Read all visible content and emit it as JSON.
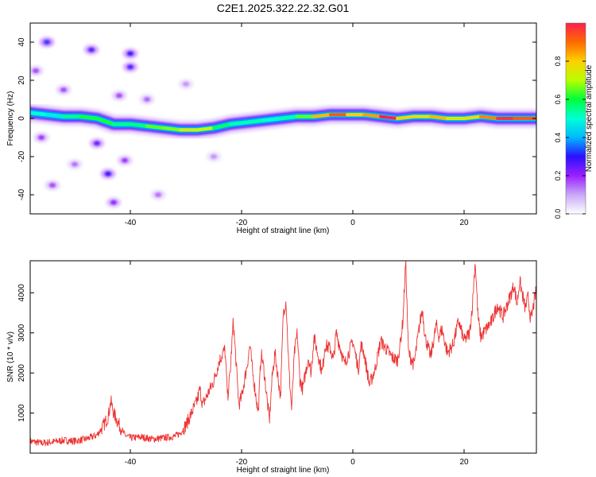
{
  "figure": {
    "title": "C2E1.2025.322.22.32.G01"
  },
  "chart_data": [
    {
      "type": "heatmap",
      "title": "C2E1.2025.322.22.32.G01",
      "xlabel": "Height of straight line (km)",
      "ylabel": "Frequency (Hz)",
      "xlim": [
        -58,
        33
      ],
      "ylim": [
        -50,
        50
      ],
      "xticks": [
        -40,
        -20,
        0,
        20
      ],
      "yticks": [
        -40,
        -20,
        0,
        20,
        40
      ],
      "colorbar": {
        "label": "Normalized spectral amplitude",
        "range": [
          0.0,
          1.0
        ],
        "ticks": [
          0.0,
          0.2,
          0.4,
          0.6,
          0.8
        ],
        "tick_labels": [
          "0.0",
          "0.2",
          "0.4",
          "0.6",
          "0.8"
        ],
        "colormap": [
          "#ffffff",
          "#c9a8f7",
          "#9a20ff",
          "#2a10ff",
          "#00b8ff",
          "#00ffd6",
          "#00ff3c",
          "#b8ff00",
          "#ffd000",
          "#ff6a00",
          "#ff1f4e"
        ]
      },
      "ridge": {
        "x": [
          -58,
          -55,
          -52,
          -49,
          -46,
          -43,
          -40,
          -37,
          -34,
          -31,
          -28,
          -25,
          -22,
          -19,
          -16,
          -13,
          -10,
          -7,
          -4,
          -1,
          2,
          5,
          8,
          11,
          14,
          17,
          20,
          23,
          26,
          29,
          33
        ],
        "frequency": [
          3,
          2,
          1,
          1,
          0,
          -3,
          -3,
          -4,
          -5,
          -6,
          -6,
          -5,
          -3,
          -2,
          -1,
          0,
          1,
          1,
          2,
          2,
          2,
          1,
          0,
          1,
          1,
          0,
          0,
          1,
          0,
          0,
          0
        ],
        "amplitude": [
          0.55,
          0.45,
          0.5,
          0.6,
          0.62,
          0.6,
          0.5,
          0.62,
          0.68,
          0.65,
          0.85,
          0.6,
          0.55,
          0.5,
          0.55,
          0.45,
          0.6,
          0.7,
          0.95,
          0.9,
          0.7,
          1.0,
          1.0,
          0.6,
          0.95,
          0.7,
          0.8,
          0.75,
          1.0,
          0.95,
          0.9
        ]
      },
      "noise_clusters": [
        {
          "x": -55,
          "frequency": 40,
          "amplitude": 0.32
        },
        {
          "x": -47,
          "frequency": 36,
          "amplitude": 0.28
        },
        {
          "x": -44,
          "frequency": -29,
          "amplitude": 0.3
        },
        {
          "x": -40,
          "frequency": 34,
          "amplitude": 0.3
        },
        {
          "x": -40,
          "frequency": 27,
          "amplitude": 0.28
        },
        {
          "x": -46,
          "frequency": -13,
          "amplitude": 0.26
        },
        {
          "x": -43,
          "frequency": -44,
          "amplitude": 0.22
        },
        {
          "x": -41,
          "frequency": -22,
          "amplitude": 0.2
        },
        {
          "x": -56,
          "frequency": -10,
          "amplitude": 0.2
        },
        {
          "x": -52,
          "frequency": 15,
          "amplitude": 0.18
        },
        {
          "x": -54,
          "frequency": -35,
          "amplitude": 0.18
        },
        {
          "x": -37,
          "frequency": 10,
          "amplitude": 0.16
        },
        {
          "x": -35,
          "frequency": -40,
          "amplitude": 0.15
        },
        {
          "x": -50,
          "frequency": -24,
          "amplitude": 0.15
        },
        {
          "x": -57,
          "frequency": 25,
          "amplitude": 0.18
        },
        {
          "x": -42,
          "frequency": 12,
          "amplitude": 0.18
        },
        {
          "x": -30,
          "frequency": 18,
          "amplitude": 0.12
        },
        {
          "x": -25,
          "frequency": -20,
          "amplitude": 0.12
        }
      ]
    },
    {
      "type": "line",
      "xlabel": "Height of straight line (km)",
      "ylabel": "SNR (10 * v/v)",
      "xlim": [
        -58,
        33
      ],
      "ylim": [
        0,
        4800
      ],
      "xticks": [
        -40,
        -20,
        0,
        20
      ],
      "yticks": [
        1000,
        2000,
        3000,
        4000
      ],
      "color": "#ee3333",
      "series": [
        {
          "name": "SNR",
          "x": [
            -58,
            -56,
            -54,
            -52,
            -50,
            -48,
            -46,
            -45,
            -44,
            -43.5,
            -43,
            -42,
            -41,
            -40,
            -38,
            -36,
            -34,
            -32,
            -31,
            -30,
            -29,
            -28,
            -27.5,
            -27,
            -26,
            -25,
            -24,
            -23,
            -22.5,
            -22,
            -21.5,
            -21,
            -20.5,
            -20,
            -19,
            -18.5,
            -18,
            -17,
            -16.5,
            -16,
            -15,
            -14.5,
            -14,
            -13,
            -12.5,
            -12,
            -11.5,
            -11,
            -10.5,
            -10,
            -9.5,
            -9,
            -8,
            -7.5,
            -7,
            -6,
            -5.5,
            -5,
            -4,
            -3.5,
            -3,
            -2,
            -1.5,
            -1,
            0,
            1,
            1.5,
            2,
            3,
            4,
            5,
            6,
            7,
            8,
            8.5,
            9,
            9.5,
            10,
            11,
            12,
            12.5,
            13,
            14,
            15,
            15.5,
            16,
            17,
            18,
            19,
            20,
            21,
            21.5,
            22,
            22.5,
            23,
            24,
            25,
            26,
            27,
            28,
            29,
            29.5,
            30,
            31,
            31.5,
            32,
            33
          ],
          "y": [
            300,
            250,
            280,
            320,
            300,
            350,
            450,
            650,
            900,
            1300,
            1000,
            700,
            450,
            380,
            400,
            350,
            380,
            420,
            500,
            700,
            1000,
            1300,
            1600,
            1200,
            1500,
            1800,
            2300,
            2600,
            1400,
            2100,
            3300,
            2300,
            1200,
            1400,
            2200,
            2700,
            2000,
            1000,
            2500,
            2100,
            800,
            1900,
            2500,
            1400,
            3500,
            3800,
            2100,
            1100,
            2500,
            3000,
            1800,
            1600,
            2400,
            2000,
            2900,
            2300,
            2000,
            2700,
            2600,
            2300,
            3000,
            2500,
            2200,
            2400,
            2800,
            2100,
            2700,
            2500,
            1700,
            2100,
            2800,
            2600,
            2400,
            2300,
            2700,
            3300,
            4800,
            2500,
            2200,
            3200,
            3600,
            2900,
            2400,
            3200,
            2900,
            3100,
            2500,
            2700,
            3300,
            2800,
            3000,
            3700,
            4800,
            3400,
            2900,
            3100,
            3300,
            3700,
            3400,
            3800,
            4200,
            3700,
            4300,
            3600,
            3900,
            3300,
            4100
          ]
        }
      ]
    }
  ]
}
